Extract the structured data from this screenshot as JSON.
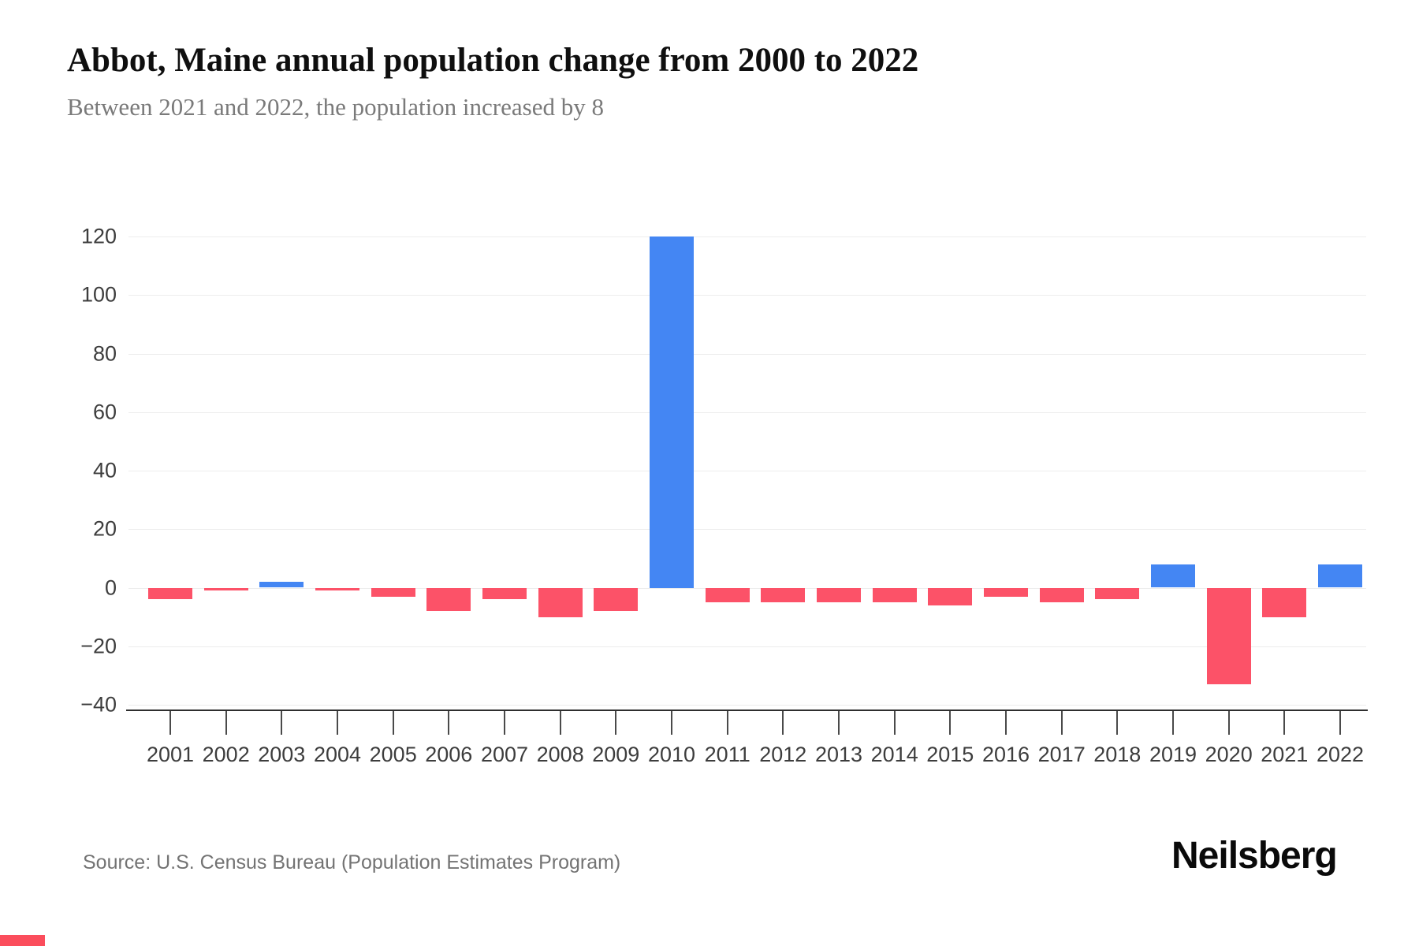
{
  "header": {
    "title": "Abbot, Maine annual population change from 2000 to 2022",
    "subtitle": "Between 2021 and 2022, the population increased by 8"
  },
  "chart_data": {
    "type": "bar",
    "title": "Abbot, Maine annual population change from 2000 to 2022",
    "subtitle": "Between 2021 and 2022, the population increased by 8",
    "categories": [
      "2001",
      "2002",
      "2003",
      "2004",
      "2005",
      "2006",
      "2007",
      "2008",
      "2009",
      "2010",
      "2011",
      "2012",
      "2013",
      "2014",
      "2015",
      "2016",
      "2017",
      "2018",
      "2019",
      "2020",
      "2021",
      "2022"
    ],
    "values": [
      -4,
      -1,
      2,
      -1,
      -3,
      -8,
      -4,
      -10,
      -8,
      120,
      -5,
      -5,
      -5,
      -5,
      -6,
      -3,
      -5,
      -4,
      8,
      -33,
      -10,
      8
    ],
    "xlabel": "",
    "ylabel": "",
    "ylim": [
      -40,
      120
    ],
    "yticks": [
      120,
      100,
      80,
      60,
      40,
      20,
      0,
      -20,
      -40
    ],
    "grid": true,
    "legend": false,
    "positive_color": "#4486F3",
    "negative_color": "#FC5268"
  },
  "footer": {
    "source": "Source: U.S. Census Bureau (Population Estimates Program)",
    "logo": "Neilsberg"
  },
  "accent": {
    "corner_bar_color": "#FB4D5C"
  }
}
